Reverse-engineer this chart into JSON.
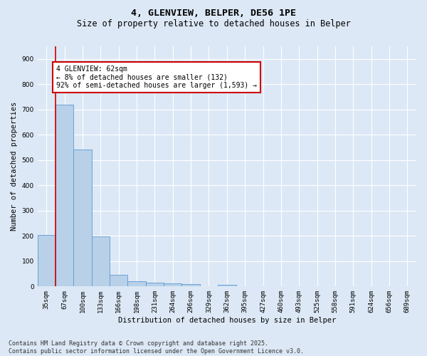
{
  "title": "4, GLENVIEW, BELPER, DE56 1PE",
  "subtitle": "Size of property relative to detached houses in Belper",
  "xlabel": "Distribution of detached houses by size in Belper",
  "ylabel": "Number of detached properties",
  "categories": [
    "35sqm",
    "67sqm",
    "100sqm",
    "133sqm",
    "166sqm",
    "198sqm",
    "231sqm",
    "264sqm",
    "296sqm",
    "329sqm",
    "362sqm",
    "395sqm",
    "427sqm",
    "460sqm",
    "493sqm",
    "525sqm",
    "558sqm",
    "591sqm",
    "624sqm",
    "656sqm",
    "689sqm"
  ],
  "values": [
    205,
    720,
    543,
    197,
    45,
    20,
    15,
    12,
    8,
    0,
    7,
    0,
    0,
    0,
    0,
    0,
    0,
    0,
    0,
    0,
    0
  ],
  "bar_color": "#b8d0e8",
  "bar_edge_color": "#5b9bd5",
  "vline_color": "#cc0000",
  "annotation_text": "4 GLENVIEW: 62sqm\n← 8% of detached houses are smaller (132)\n92% of semi-detached houses are larger (1,593) →",
  "annotation_box_color": "#ffffff",
  "annotation_box_edge": "#cc0000",
  "ylim": [
    0,
    950
  ],
  "yticks": [
    0,
    100,
    200,
    300,
    400,
    500,
    600,
    700,
    800,
    900
  ],
  "background_color": "#dce8f5",
  "grid_color": "#ffffff",
  "footer_line1": "Contains HM Land Registry data © Crown copyright and database right 2025.",
  "footer_line2": "Contains public sector information licensed under the Open Government Licence v3.0.",
  "title_fontsize": 9.5,
  "subtitle_fontsize": 8.5,
  "tick_fontsize": 6.5,
  "ylabel_fontsize": 7.5,
  "xlabel_fontsize": 7.5,
  "annotation_fontsize": 7,
  "footer_fontsize": 6
}
